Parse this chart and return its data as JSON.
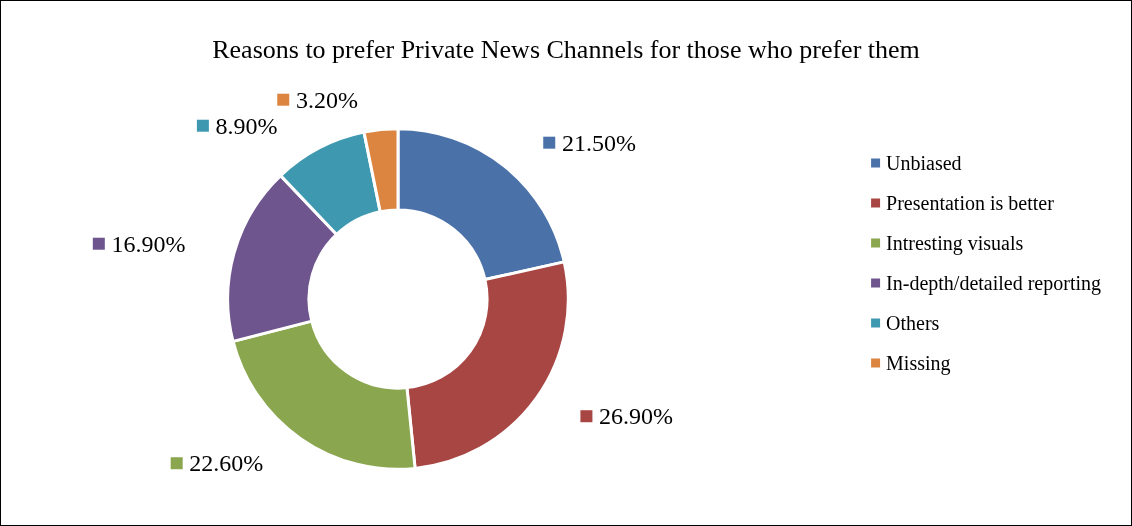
{
  "chart_data": {
    "type": "donut",
    "title": "Reasons to prefer Private News Channels for those who prefer them",
    "categories": [
      "Unbiased",
      "Presentation is better",
      "Intresting visuals",
      "In-depth/detailed reporting",
      "Others",
      "Missing"
    ],
    "values": [
      21.5,
      26.9,
      22.6,
      16.9,
      8.9,
      3.2
    ],
    "colors": [
      "#4a72a8",
      "#a84644",
      "#8aa64e",
      "#6e558e",
      "#3e99b0",
      "#dc8540"
    ],
    "value_labels": [
      "21.50%",
      "26.90%",
      "22.60%",
      "16.90%",
      "8.90%",
      "3.20%"
    ],
    "legend": "right"
  }
}
